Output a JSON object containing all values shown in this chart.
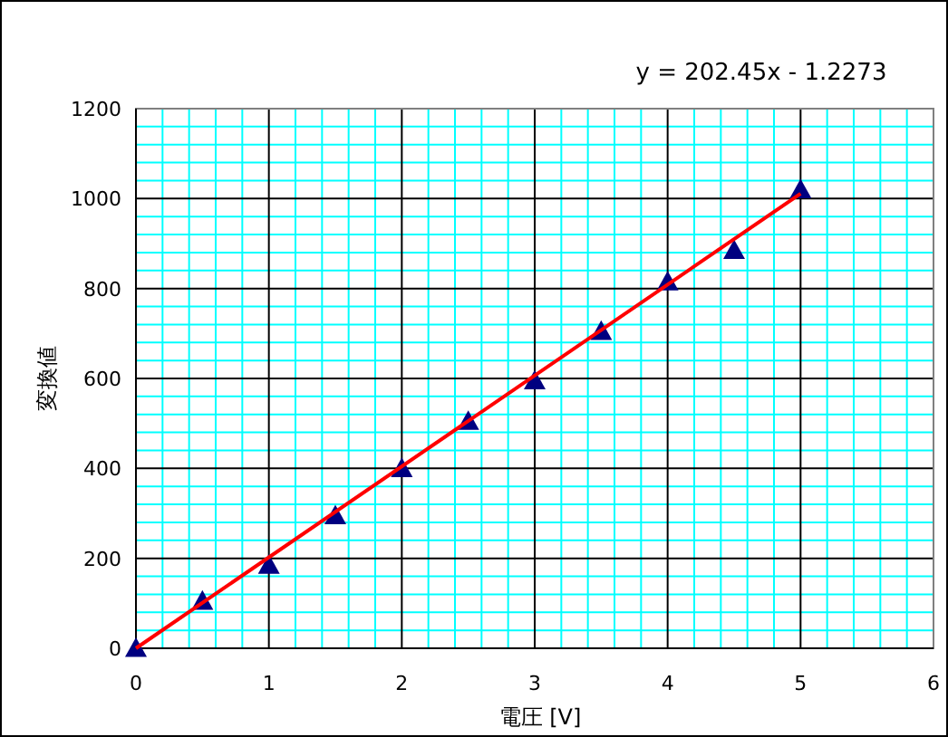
{
  "chart_data": {
    "type": "scatter",
    "xlabel": "電圧 [V]",
    "ylabel": "変換値",
    "x": [
      0,
      0.5,
      1,
      1.5,
      2,
      2.5,
      3,
      3.5,
      4,
      4.5,
      5
    ],
    "series": [
      {
        "color": "#000080",
        "marker": "triangle",
        "values": [
          0,
          105,
          185,
          295,
          400,
          505,
          595,
          705,
          815,
          885,
          1020
        ]
      },
      {
        "type": "line",
        "color": "#ff0000",
        "x": [
          0,
          5
        ],
        "values": [
          0,
          1011
        ],
        "marker": "none",
        "line_style": "solid"
      }
    ],
    "xlim": [
      0,
      6
    ],
    "xticks": [
      0,
      {
        "value": 0.2,
        "label": null
      },
      {
        "value": 0.4,
        "label": null
      },
      {
        "value": 0.6,
        "label": null
      },
      {
        "value": 0.8,
        "label": null
      },
      1,
      {
        "value": 1.2,
        "label": null
      },
      {
        "value": 1.4,
        "label": null
      },
      {
        "value": 1.6,
        "label": null
      },
      {
        "value": 1.8,
        "label": null
      },
      2,
      {
        "value": 2.2,
        "label": null
      },
      {
        "value": 2.4,
        "label": null
      },
      {
        "value": 2.6,
        "label": null
      },
      {
        "value": 2.8,
        "label": null
      },
      3,
      {
        "value": 3.2,
        "label": null
      },
      {
        "value": 3.4,
        "label": null
      },
      {
        "value": 3.6,
        "label": null
      },
      {
        "value": 3.8,
        "label": null
      },
      4,
      {
        "value": 4.2,
        "label": null
      },
      {
        "value": 4.4,
        "label": null
      },
      {
        "value": 4.6,
        "label": null
      },
      {
        "value": 4.8,
        "label": null
      },
      5,
      {
        "value": 5.2,
        "label": null
      },
      {
        "value": 5.4,
        "label": null
      },
      {
        "value": 5.6,
        "label": null
      },
      {
        "value": 5.8,
        "label": null
      },
      6
    ],
    "ylim": [
      0,
      1200
    ],
    "yticks": [
      0,
      {
        "value": 40,
        "label": null
      },
      {
        "value": 80,
        "label": null
      },
      {
        "value": 120,
        "label": null
      },
      {
        "value": 160,
        "label": null
      },
      200,
      {
        "value": 240,
        "label": null
      },
      {
        "value": 280,
        "label": null
      },
      {
        "value": 320,
        "label": null
      },
      {
        "value": 360,
        "label": null
      },
      400,
      {
        "value": 440,
        "label": null
      },
      {
        "value": 480,
        "label": null
      },
      {
        "value": 520,
        "label": null
      },
      {
        "value": 560,
        "label": null
      },
      600,
      {
        "value": 640,
        "label": null
      },
      {
        "value": 680,
        "label": null
      },
      {
        "value": 720,
        "label": null
      },
      {
        "value": 760,
        "label": null
      },
      800,
      {
        "value": 840,
        "label": null
      },
      {
        "value": 880,
        "label": null
      },
      {
        "value": 920,
        "label": null
      },
      {
        "value": 960,
        "label": null
      },
      1000,
      {
        "value": 1040,
        "label": null
      },
      {
        "value": 1080,
        "label": null
      },
      {
        "value": 1120,
        "label": null
      },
      {
        "value": 1160,
        "label": null
      },
      1200
    ],
    "grid": true,
    "annotations": [
      "y = 202.45x - 1.2273"
    ]
  }
}
